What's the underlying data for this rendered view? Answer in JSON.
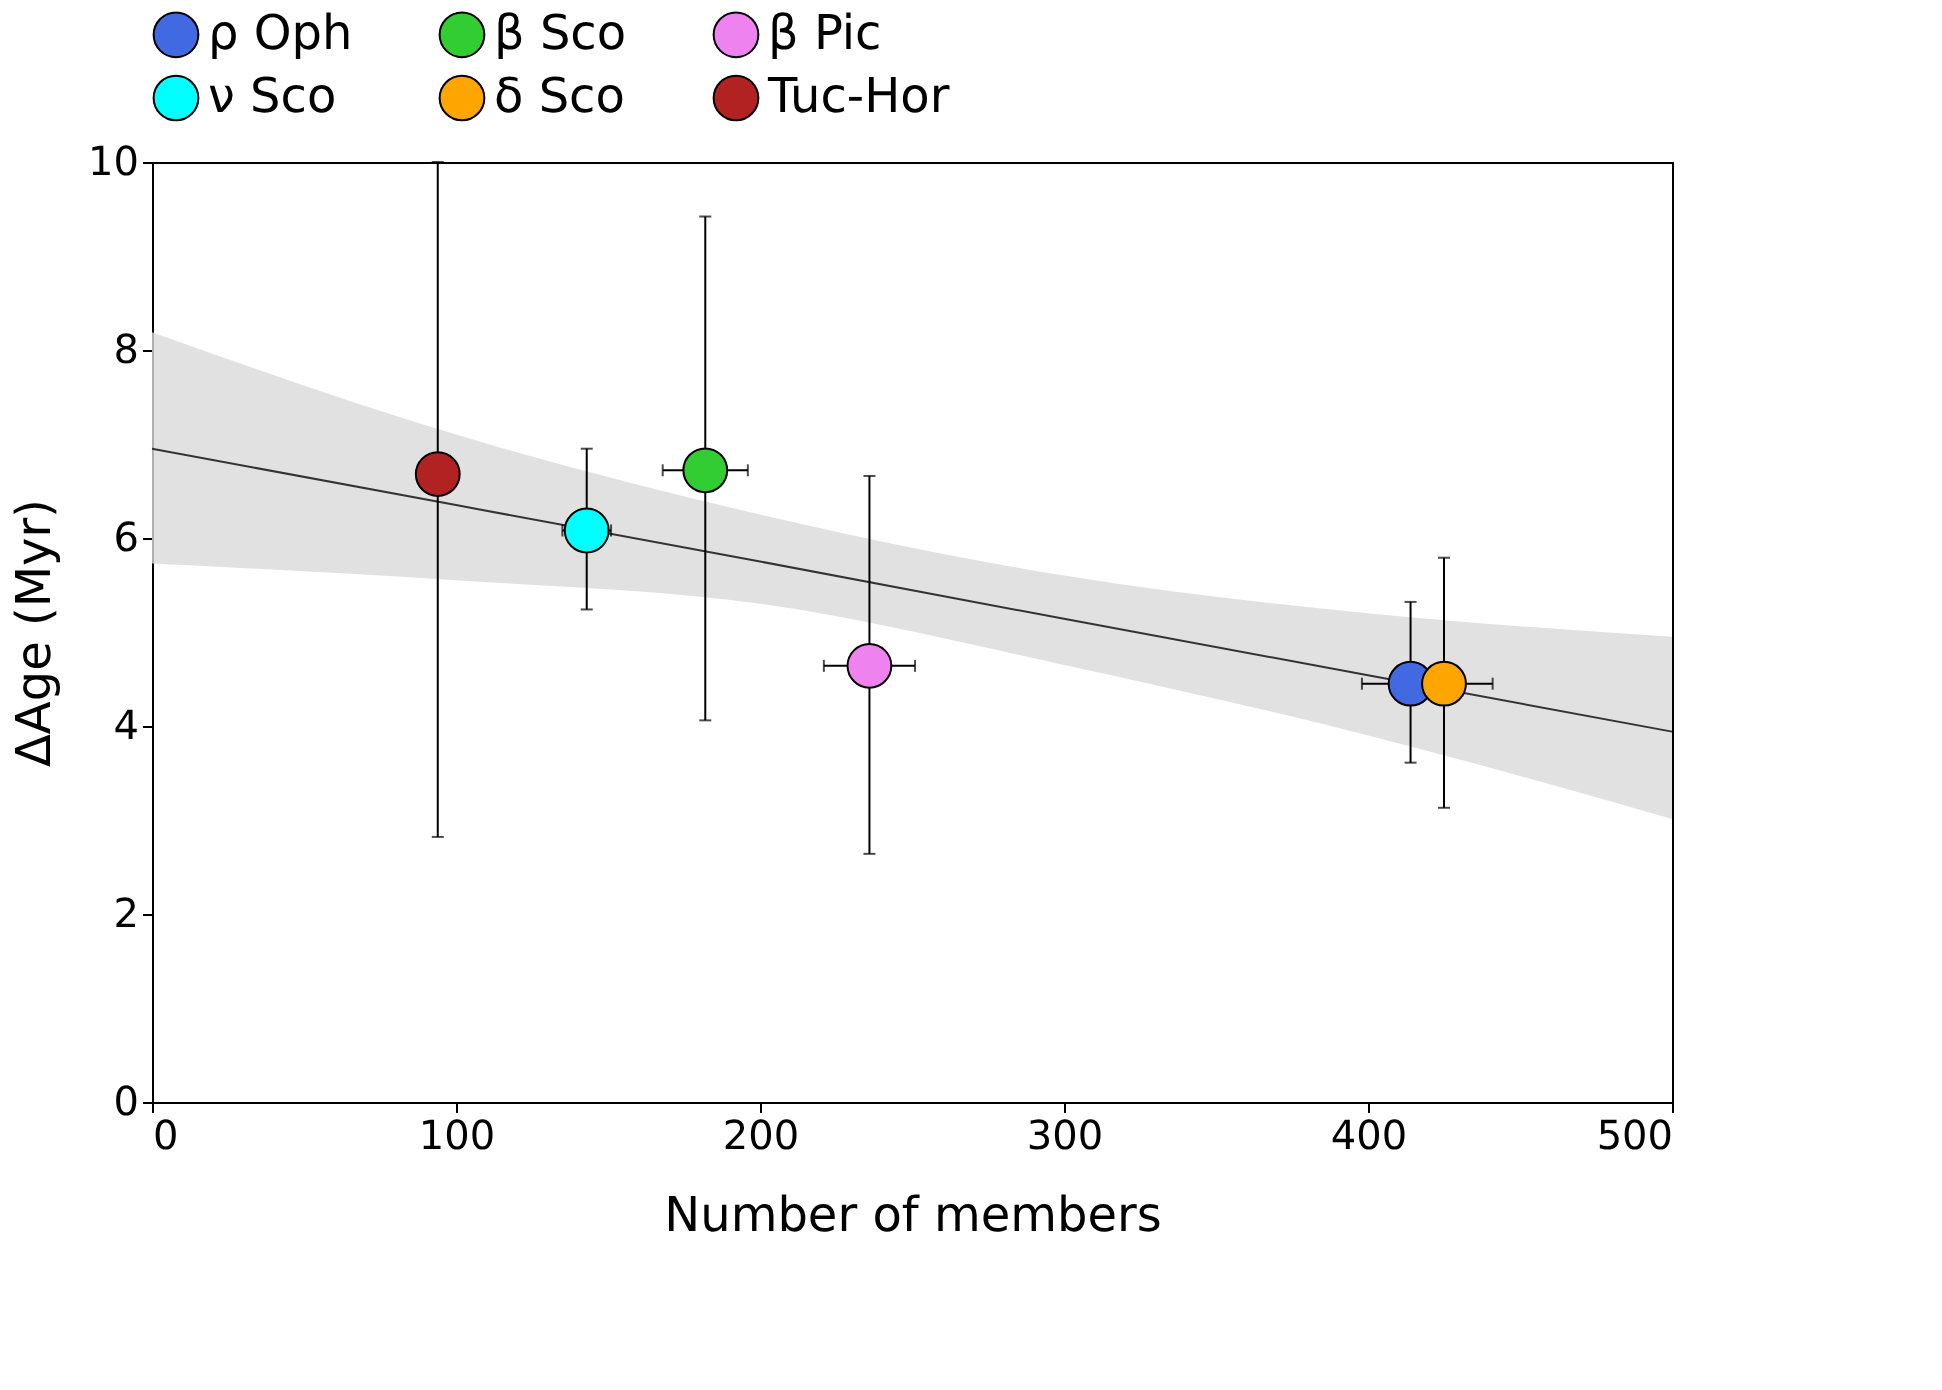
{
  "chart_data": {
    "type": "scatter",
    "xlabel": "Number of members",
    "ylabel": "ΔAge (Myr)",
    "xlim": [
      0,
      500
    ],
    "xticks": [
      0,
      100,
      200,
      300,
      400,
      500
    ],
    "ylim": [
      0,
      10
    ],
    "yticks": [
      0,
      2,
      4,
      6,
      8,
      10
    ],
    "grid": false,
    "legend": "top",
    "marker": "circle",
    "series": [
      {
        "name": "ρ Oph",
        "color": "#4169e1",
        "x": [
          414
        ],
        "values": [
          4.45
        ],
        "errors": [
          [
            3.61,
            5.32
          ]
        ],
        "xerrors": [
          16
        ]
      },
      {
        "name": "β Sco",
        "color": "#32cd32",
        "x": [
          182
        ],
        "values": [
          6.72
        ],
        "errors": [
          [
            4.06,
            9.42
          ]
        ],
        "xerrors": [
          14
        ]
      },
      {
        "name": "β Pic",
        "color": "#ee82ee",
        "x": [
          236
        ],
        "values": [
          4.64
        ],
        "errors": [
          [
            2.64,
            6.66
          ]
        ],
        "xerrors": [
          15
        ]
      },
      {
        "name": "ν Sco",
        "color": "#00ffff",
        "x": [
          143
        ],
        "values": [
          6.08
        ],
        "errors": [
          [
            5.24,
            6.95
          ]
        ],
        "xerrors": [
          8
        ]
      },
      {
        "name": "δ Sco",
        "color": "#ffa500",
        "x": [
          425
        ],
        "values": [
          4.45
        ],
        "errors": [
          [
            3.13,
            5.79
          ]
        ],
        "xerrors": [
          16
        ]
      },
      {
        "name": "Tuc-Hor",
        "color": "#b22222",
        "x": [
          94
        ],
        "values": [
          6.68
        ],
        "errors": [
          [
            2.82,
            10
          ]
        ],
        "xerrors": [
          6
        ]
      },
      {
        "type": "line",
        "marker": "none",
        "color": "#333333",
        "x": [
          0,
          100,
          200,
          300,
          400,
          500
        ],
        "values": [
          6.95,
          6.35,
          5.75,
          5.14,
          4.54,
          3.94
        ],
        "lower": [
          5.73,
          5.55,
          5.3,
          4.65,
          3.9,
          3.01
        ],
        "upper": [
          8.19,
          7.1,
          6.25,
          5.6,
          5.2,
          4.95
        ]
      }
    ]
  }
}
